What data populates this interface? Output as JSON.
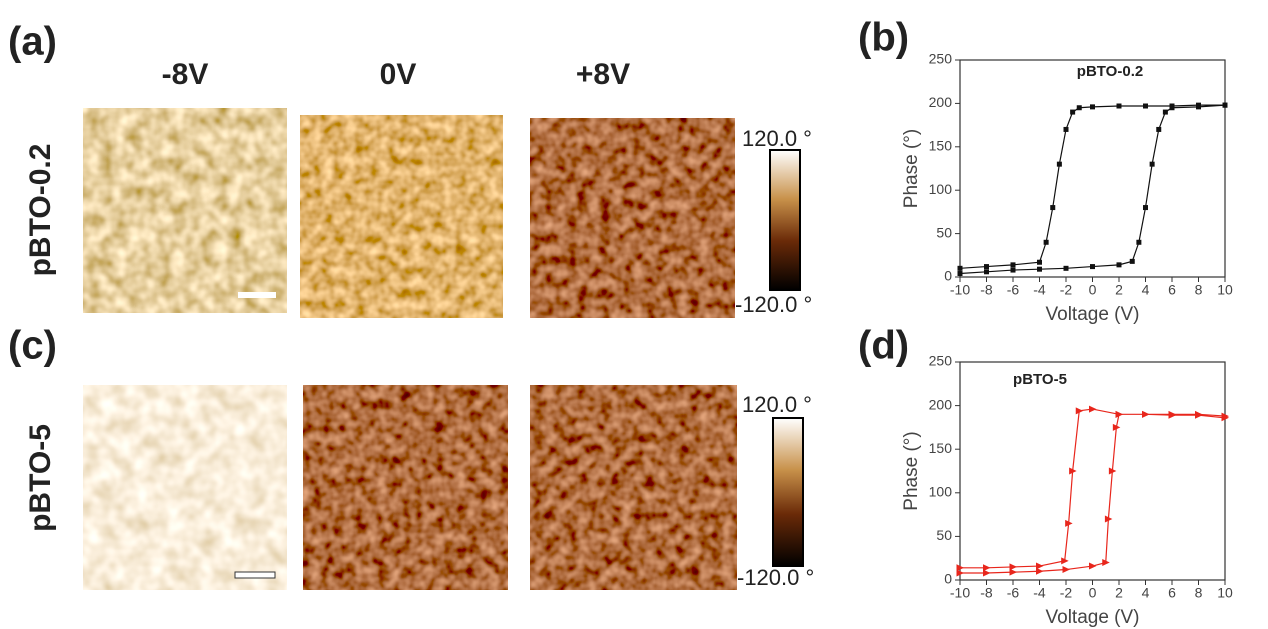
{
  "panel_labels": [
    "(a)",
    "(b)",
    "(c)",
    "(d)"
  ],
  "column_headers": [
    "-8V",
    "0V",
    "+8V"
  ],
  "row_labels": [
    "pBTO-0.2",
    "pBTO-5"
  ],
  "colorbars": [
    {
      "max_label": "120.0 °",
      "min_label": "-120.0 °"
    },
    {
      "max_label": "120.0 °",
      "min_label": "-120.0 °"
    }
  ],
  "chart_data": [
    {
      "type": "line",
      "title": "pBTO-0.2",
      "x_label": "Voltage (V)",
      "y_label": "Phase (°)",
      "xlim": [
        -10,
        10
      ],
      "ylim": [
        0,
        250
      ],
      "xticks": [
        -10,
        -8,
        -6,
        -4,
        -2,
        0,
        2,
        4,
        6,
        8,
        10
      ],
      "yticks": [
        0,
        50,
        100,
        150,
        200,
        250
      ],
      "x": [
        -10,
        -8,
        -6,
        -4,
        -2,
        0,
        2,
        3,
        3.5,
        4,
        4.5,
        5,
        5.5,
        6,
        8,
        10,
        10,
        8,
        6,
        4,
        2,
        0,
        -1,
        -1.5,
        -2,
        -2.5,
        -3,
        -3.5,
        -4,
        -6,
        -8,
        -10
      ],
      "series": [
        {
          "color": "#111111",
          "marker": "square",
          "values": [
            4,
            6,
            8,
            9,
            10,
            12,
            14,
            18,
            40,
            80,
            130,
            170,
            190,
            195,
            196,
            198,
            198,
            198,
            197,
            197,
            197,
            196,
            195,
            190,
            170,
            130,
            80,
            40,
            17,
            14,
            12,
            10
          ]
        }
      ]
    },
    {
      "type": "line",
      "title": "pBTO-5",
      "x_label": "Voltage (V)",
      "y_label": "Phase (°)",
      "xlim": [
        -10,
        10
      ],
      "ylim": [
        0,
        250
      ],
      "xticks": [
        -10,
        -8,
        -6,
        -4,
        -2,
        0,
        2,
        4,
        6,
        8,
        10
      ],
      "yticks": [
        0,
        50,
        100,
        150,
        200,
        250
      ],
      "x": [
        -10,
        -8,
        -6,
        -4,
        -2,
        0,
        1,
        1.2,
        1.5,
        1.8,
        2,
        4,
        6,
        8,
        10,
        10,
        8,
        6,
        4,
        2,
        0,
        -1,
        -1.5,
        -1.8,
        -2.1,
        -4,
        -6,
        -8,
        -10
      ],
      "series": [
        {
          "color": "#e8261c",
          "marker": "triangle",
          "values": [
            8,
            8,
            9,
            10,
            12,
            16,
            20,
            70,
            125,
            175,
            190,
            190,
            190,
            190,
            188,
            186,
            189,
            189,
            190,
            190,
            196,
            194,
            125,
            65,
            22,
            16,
            15,
            14,
            14
          ]
        }
      ]
    }
  ]
}
